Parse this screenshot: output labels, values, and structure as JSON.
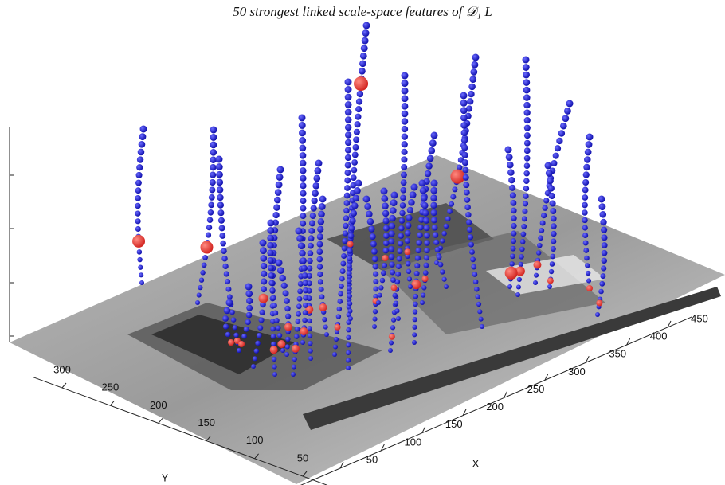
{
  "chart_data": {
    "type": "scatter3d",
    "title": "50 strongest linked scale-space features of 𝒟₁ L",
    "xlabel": "X",
    "ylabel": "Y",
    "xlim": [
      0,
      480
    ],
    "xticks": [
      50,
      100,
      150,
      200,
      250,
      300,
      350,
      400,
      450
    ],
    "ylim": [
      0,
      330
    ],
    "yticks": [
      50,
      100,
      150,
      200,
      250,
      300
    ],
    "color": "#1f1fd6",
    "highlight_color": "#e8302c"
  }
}
